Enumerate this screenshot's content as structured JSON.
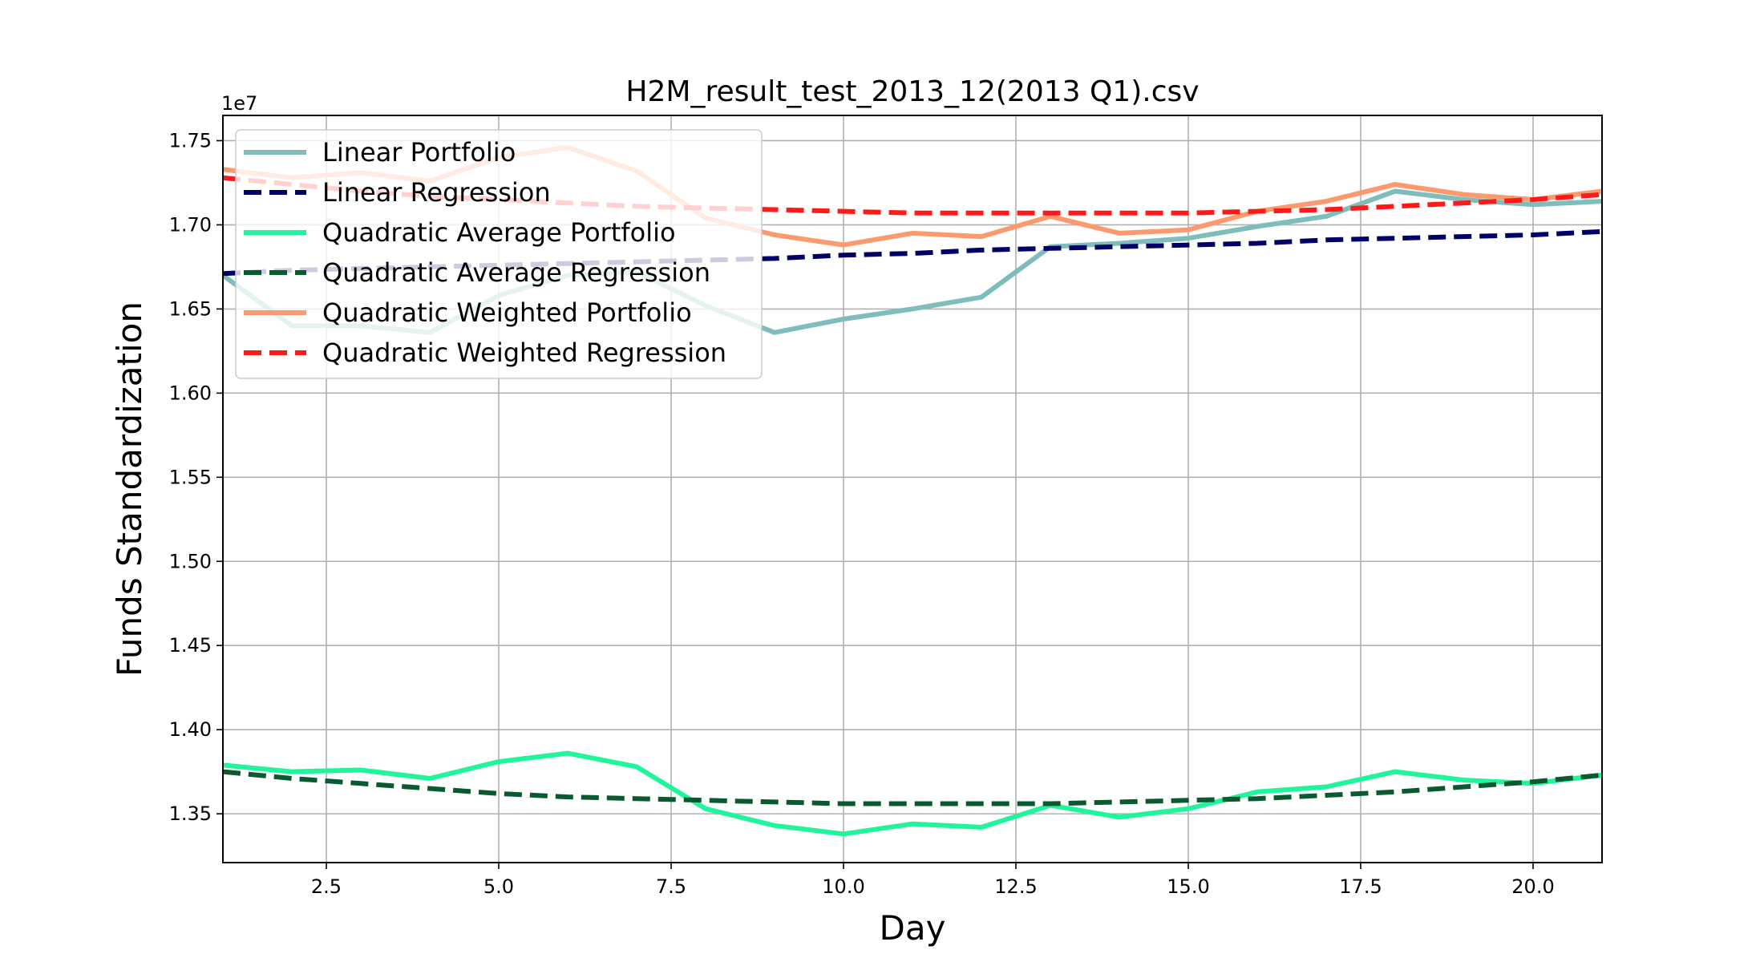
{
  "chart_data": {
    "type": "line",
    "title": "H2M_result_test_2013_12(2013 Q1).csv",
    "xlabel": "Day",
    "ylabel": "Funds Standardization",
    "y_offset_label": "1e7",
    "xlim": [
      1,
      21
    ],
    "ylim": [
      13.21,
      17.65
    ],
    "x_ticks": [
      2.5,
      5.0,
      7.5,
      10.0,
      12.5,
      15.0,
      17.5,
      20.0
    ],
    "x_tick_labels": [
      "2.5",
      "5.0",
      "7.5",
      "10.0",
      "12.5",
      "15.0",
      "17.5",
      "20.0"
    ],
    "y_ticks": [
      13.5,
      14.0,
      14.5,
      15.0,
      15.5,
      16.0,
      16.5,
      17.0,
      17.5
    ],
    "y_tick_labels": [
      "1.35",
      "1.40",
      "1.45",
      "1.50",
      "1.55",
      "1.60",
      "1.65",
      "1.70",
      "1.75"
    ],
    "grid": true,
    "legend_position": "upper-left",
    "x": [
      1,
      2,
      3,
      4,
      5,
      6,
      7,
      8,
      9,
      10,
      11,
      12,
      13,
      14,
      15,
      16,
      17,
      18,
      19,
      20,
      21
    ],
    "series": [
      {
        "name": "Linear Portfolio",
        "color": "#7fbcbc",
        "style": "solid",
        "values": [
          16.7,
          16.4,
          16.4,
          16.36,
          16.58,
          16.7,
          16.72,
          16.52,
          16.36,
          16.44,
          16.5,
          16.57,
          16.87,
          16.89,
          16.92,
          16.99,
          17.05,
          17.2,
          17.15,
          17.12,
          17.14
        ]
      },
      {
        "name": "Linear Regression",
        "color": "#000066",
        "style": "dashed",
        "values": [
          16.71,
          16.73,
          16.74,
          16.75,
          16.76,
          16.77,
          16.78,
          16.79,
          16.8,
          16.82,
          16.83,
          16.85,
          16.86,
          16.87,
          16.88,
          16.89,
          16.91,
          16.92,
          16.93,
          16.94,
          16.96
        ]
      },
      {
        "name": "Quadratic Average Portfolio",
        "color": "#21f59c",
        "style": "solid",
        "values": [
          13.79,
          13.75,
          13.76,
          13.71,
          13.81,
          13.86,
          13.78,
          13.53,
          13.43,
          13.38,
          13.44,
          13.42,
          13.55,
          13.48,
          13.53,
          13.63,
          13.66,
          13.75,
          13.7,
          13.68,
          13.73
        ]
      },
      {
        "name": "Quadratic Average Regression",
        "color": "#0a5a2f",
        "style": "dashed",
        "values": [
          13.75,
          13.71,
          13.68,
          13.65,
          13.62,
          13.6,
          13.59,
          13.58,
          13.57,
          13.56,
          13.56,
          13.56,
          13.56,
          13.57,
          13.58,
          13.59,
          13.61,
          13.63,
          13.66,
          13.69,
          13.73
        ]
      },
      {
        "name": "Quadratic Weighted Portfolio",
        "color": "#fa9a6e",
        "style": "solid",
        "values": [
          17.33,
          17.28,
          17.31,
          17.26,
          17.4,
          17.46,
          17.32,
          17.04,
          16.94,
          16.88,
          16.95,
          16.93,
          17.05,
          16.95,
          16.97,
          17.08,
          17.14,
          17.24,
          17.18,
          17.15,
          17.2
        ]
      },
      {
        "name": "Quadratic Weighted Regression",
        "color": "#ff1a1a",
        "style": "dashed",
        "values": [
          17.28,
          17.24,
          17.2,
          17.17,
          17.15,
          17.13,
          17.11,
          17.1,
          17.09,
          17.08,
          17.07,
          17.07,
          17.07,
          17.07,
          17.07,
          17.08,
          17.09,
          17.11,
          17.13,
          17.15,
          17.18
        ]
      }
    ]
  }
}
